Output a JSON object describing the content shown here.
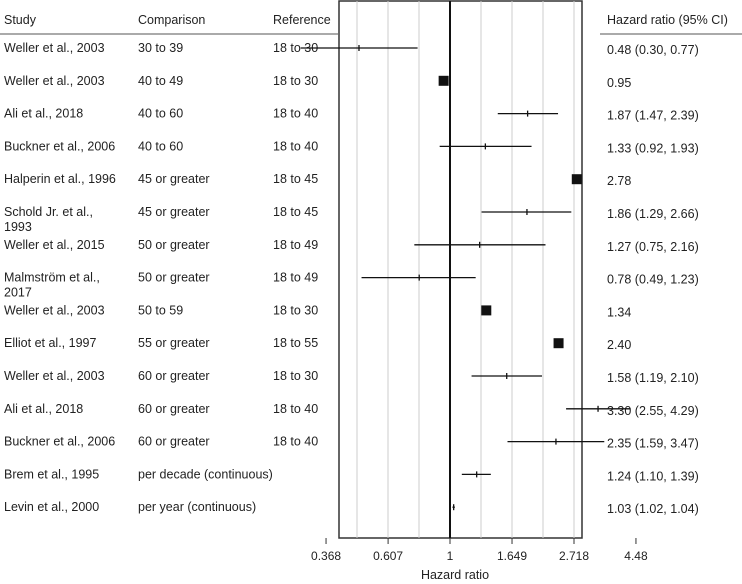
{
  "chart_data": {
    "type": "forest",
    "columns": {
      "study": "Study",
      "comparison": "Comparison",
      "reference": "Reference",
      "estimate": "Hazard ratio (95% CI)"
    },
    "xlabel": "Hazard ratio",
    "x_scale": "log",
    "xlim": [
      0.25,
      5.5
    ],
    "xticks": [
      {
        "value": 0.368,
        "label": "0.368"
      },
      {
        "value": 0.607,
        "label": "0.607"
      },
      {
        "value": 1,
        "label": "1"
      },
      {
        "value": 1.649,
        "label": "1.649"
      },
      {
        "value": 2.718,
        "label": "2.718"
      },
      {
        "value": 4.48,
        "label": "4.48"
      }
    ],
    "reference_line": 1,
    "colors": {
      "mark": "#111111",
      "grid": "#cccccc",
      "frame": "#333333"
    },
    "rows": [
      {
        "study": "Weller et al., 2003",
        "comparison": "30 to 39",
        "reference": "18 to 30",
        "hr": 0.48,
        "lower": 0.3,
        "upper": 0.77,
        "label": "0.48 (0.30, 0.77)",
        "marker": "tick"
      },
      {
        "study": "Weller et al., 2003",
        "comparison": "40 to 49",
        "reference": "18 to 30",
        "hr": 0.95,
        "lower": null,
        "upper": null,
        "label": "0.95",
        "marker": "square"
      },
      {
        "study": "Ali et al., 2018",
        "comparison": "40 to 60",
        "reference": "18 to 40",
        "hr": 1.87,
        "lower": 1.47,
        "upper": 2.39,
        "label": "1.87 (1.47, 2.39)",
        "marker": "tick"
      },
      {
        "study": "Buckner et al., 2006",
        "comparison": "40 to 60",
        "reference": "18 to 40",
        "hr": 1.33,
        "lower": 0.92,
        "upper": 1.93,
        "label": "1.33 (0.92, 1.93)",
        "marker": "tick"
      },
      {
        "study": "Halperin et al., 1996",
        "comparison": "45 or greater",
        "reference": "18 to 45",
        "hr": 2.78,
        "lower": null,
        "upper": null,
        "label": "2.78",
        "marker": "square"
      },
      {
        "study": "Schold Jr. et al., 1993",
        "comparison": "45 or greater",
        "reference": "18 to 45",
        "hr": 1.86,
        "lower": 1.29,
        "upper": 2.66,
        "label": "1.86 (1.29, 2.66)",
        "marker": "tick"
      },
      {
        "study": "Weller et al., 2015",
        "comparison": "50 or greater",
        "reference": "18 to 49",
        "hr": 1.27,
        "lower": 0.75,
        "upper": 2.16,
        "label": "1.27 (0.75, 2.16)",
        "marker": "tick"
      },
      {
        "study": "Malmström et al., 2017",
        "comparison": "50 or greater",
        "reference": "18 to 49",
        "hr": 0.78,
        "lower": 0.49,
        "upper": 1.23,
        "label": "0.78 (0.49, 1.23)",
        "marker": "tick"
      },
      {
        "study": "Weller et al., 2003",
        "comparison": "50 to 59",
        "reference": "18 to 30",
        "hr": 1.34,
        "lower": null,
        "upper": null,
        "label": "1.34",
        "marker": "square"
      },
      {
        "study": "Elliot et al., 1997",
        "comparison": "55 or greater",
        "reference": "18 to 55",
        "hr": 2.4,
        "lower": null,
        "upper": null,
        "label": "2.40",
        "marker": "square"
      },
      {
        "study": "Weller et al., 2003",
        "comparison": "60 or greater",
        "reference": "18 to 30",
        "hr": 1.58,
        "lower": 1.19,
        "upper": 2.1,
        "label": "1.58 (1.19, 2.10)",
        "marker": "tick"
      },
      {
        "study": "Ali et al., 2018",
        "comparison": "60 or greater",
        "reference": "18 to 40",
        "hr": 3.3,
        "lower": 2.55,
        "upper": 4.29,
        "label": "3.30 (2.55, 4.29)",
        "marker": "tick"
      },
      {
        "study": "Buckner et al., 2006",
        "comparison": "60 or greater",
        "reference": "18 to 40",
        "hr": 2.35,
        "lower": 1.59,
        "upper": 3.47,
        "label": "2.35 (1.59, 3.47)",
        "marker": "tick"
      },
      {
        "study": "Brem et al., 1995",
        "comparison": "per decade (continuous)",
        "reference": "",
        "hr": 1.24,
        "lower": 1.1,
        "upper": 1.39,
        "label": "1.24 (1.10, 1.39)",
        "marker": "tick"
      },
      {
        "study": "Levin et al., 2000",
        "comparison": "per year (continuous)",
        "reference": "",
        "hr": 1.03,
        "lower": 1.02,
        "upper": 1.04,
        "label": "1.03 (1.02, 1.04)",
        "marker": "tick"
      }
    ]
  }
}
